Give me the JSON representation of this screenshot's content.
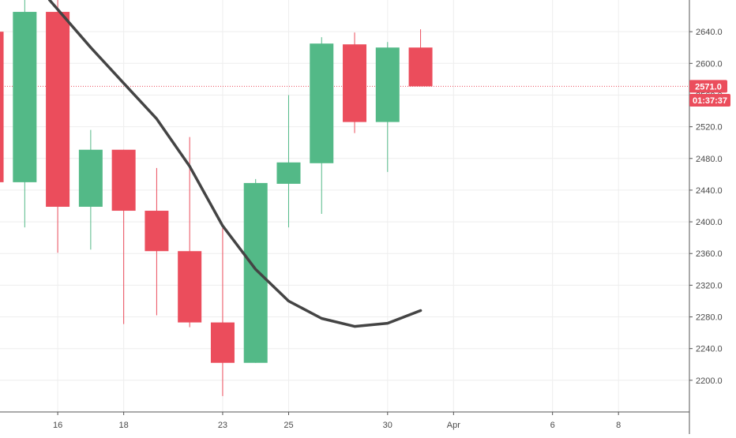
{
  "chart_data": {
    "type": "candlestick",
    "colors": {
      "up": "#53b987",
      "down": "#eb4d5c",
      "ma_line": "#444444",
      "grid": "#eeeeee",
      "axis": "#555555",
      "last_price": "#eb4d5c"
    },
    "y_axis": {
      "range": [
        2160,
        2680
      ],
      "ticks": [
        "2200.0",
        "2240.0",
        "2280.0",
        "2320.0",
        "2360.0",
        "2400.0",
        "2440.0",
        "2480.0",
        "2520.0",
        "2560.0",
        "2600.0",
        "2640.0"
      ],
      "tick_values": [
        2200,
        2240,
        2280,
        2320,
        2360,
        2400,
        2440,
        2480,
        2520,
        2560,
        2600,
        2640
      ],
      "position": "right"
    },
    "x_axis": {
      "labels": [
        {
          "text": "16",
          "slot": 1
        },
        {
          "text": "18",
          "slot": 3
        },
        {
          "text": "23",
          "slot": 6
        },
        {
          "text": "25",
          "slot": 8
        },
        {
          "text": "30",
          "slot": 11
        },
        {
          "text": "Apr",
          "slot": 13
        },
        {
          "text": "6",
          "slot": 16
        },
        {
          "text": "8",
          "slot": 18
        }
      ],
      "grid_slots": [
        1,
        3,
        6,
        8,
        11,
        13,
        16,
        18
      ],
      "slot_range": [
        -0.75,
        20.15
      ]
    },
    "candles": [
      {
        "slot": -1,
        "open": 2640,
        "close": 2450,
        "high": 2670,
        "low": 2430
      },
      {
        "slot": 0,
        "open": 2450,
        "close": 2665,
        "high": 2690,
        "low": 2393
      },
      {
        "slot": 1,
        "open": 2665,
        "close": 2419,
        "high": 2680,
        "low": 2361
      },
      {
        "slot": 2,
        "open": 2419,
        "close": 2491,
        "high": 2516,
        "low": 2365
      },
      {
        "slot": 3,
        "open": 2491,
        "close": 2414,
        "high": 2491,
        "low": 2271
      },
      {
        "slot": 4,
        "open": 2414,
        "close": 2363,
        "high": 2468,
        "low": 2282
      },
      {
        "slot": 5,
        "open": 2363,
        "close": 2273,
        "high": 2507,
        "low": 2267
      },
      {
        "slot": 6,
        "open": 2273,
        "close": 2222,
        "high": 2392,
        "low": 2180
      },
      {
        "slot": 7,
        "open": 2222,
        "close": 2449,
        "high": 2454,
        "low": 2222
      },
      {
        "slot": 8,
        "open": 2448,
        "close": 2475,
        "high": 2560,
        "low": 2393
      },
      {
        "slot": 9,
        "open": 2474,
        "close": 2625,
        "high": 2633,
        "low": 2410
      },
      {
        "slot": 10,
        "open": 2624,
        "close": 2526,
        "high": 2639,
        "low": 2512
      },
      {
        "slot": 11,
        "open": 2526,
        "close": 2620,
        "high": 2627,
        "low": 2463
      },
      {
        "slot": 12,
        "open": 2620,
        "close": 2571,
        "high": 2643,
        "low": 2571
      }
    ],
    "moving_average": [
      {
        "slot": 0.75,
        "value": 2680
      },
      {
        "slot": 2,
        "value": 2620
      },
      {
        "slot": 3,
        "value": 2575
      },
      {
        "slot": 4,
        "value": 2530
      },
      {
        "slot": 5,
        "value": 2470
      },
      {
        "slot": 6,
        "value": 2395
      },
      {
        "slot": 7,
        "value": 2340
      },
      {
        "slot": 8,
        "value": 2300
      },
      {
        "slot": 9,
        "value": 2278
      },
      {
        "slot": 10,
        "value": 2268
      },
      {
        "slot": 11,
        "value": 2272
      },
      {
        "slot": 12,
        "value": 2288
      }
    ],
    "last_price": {
      "value": 2571,
      "label": "2571.0",
      "countdown": "01:37:37"
    }
  }
}
